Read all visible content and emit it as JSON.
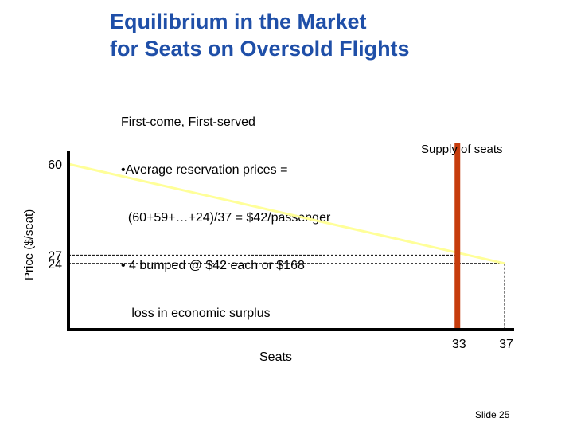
{
  "title": {
    "line1": "Equilibrium in the Market",
    "line2": "for Seats on Oversold Flights"
  },
  "note": {
    "lines": [
      "First-come, First-served",
      "•Average reservation prices =",
      "  (60+59+…+24)/37 = $42/passenger",
      "• 4 bumped @ $42 each or $168",
      "   loss in economic surplus"
    ]
  },
  "slide_label": "Slide 25",
  "chart_data": {
    "type": "line",
    "title": "",
    "xlabel": "Seats",
    "ylabel": "Price ($/seat)",
    "xlim": [
      0,
      37
    ],
    "ylim": [
      0,
      60
    ],
    "y_ticks": [
      {
        "value": 60,
        "label": "60"
      },
      {
        "value": 27,
        "label": "27"
      },
      {
        "value": 24,
        "label": "24"
      }
    ],
    "x_ticks": [
      {
        "value": 33,
        "label": "33"
      },
      {
        "value": 37,
        "label": "37"
      }
    ],
    "demand": {
      "x": [
        0,
        37
      ],
      "y": [
        60,
        24
      ]
    },
    "supply": {
      "label": "Supply of seats",
      "x": 33
    },
    "reference_lines": [
      {
        "type": "horizontal",
        "y": 27,
        "x_end": 33
      },
      {
        "type": "horizontal",
        "y": 24,
        "x_end": 37
      },
      {
        "type": "vertical",
        "x": 37,
        "y_end": 24
      }
    ],
    "colors": {
      "demand": "#ffff99",
      "supply": "#c63c0c",
      "axis": "#000000",
      "title": "#1f4fa8"
    }
  }
}
